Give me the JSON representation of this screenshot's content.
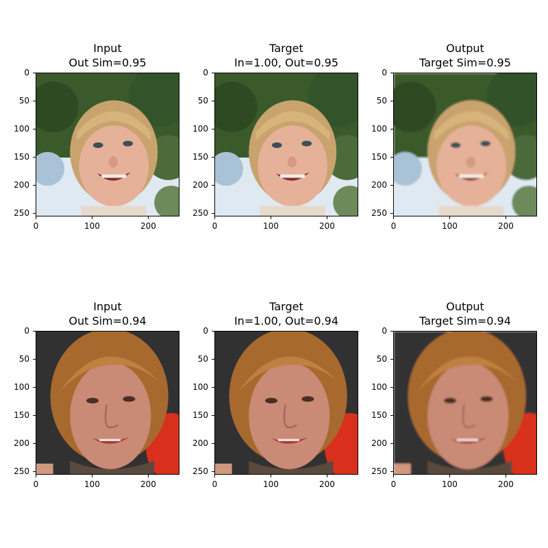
{
  "figure": {
    "rows": [
      {
        "panels": [
          {
            "title_line1": "Input",
            "title_line2": "Out Sim=0.95",
            "image": "child-face-photo"
          },
          {
            "title_line1": "Target",
            "title_line2": "In=1.00, Out=0.95",
            "image": "child-face-photo"
          },
          {
            "title_line1": "Output",
            "title_line2": "Target Sim=0.95",
            "image": "child-face-photo-blurred"
          }
        ]
      },
      {
        "panels": [
          {
            "title_line1": "Input",
            "title_line2": "Out Sim=0.94",
            "image": "woman-face-photo"
          },
          {
            "title_line1": "Target",
            "title_line2": "In=1.00, Out=0.94",
            "image": "woman-face-photo"
          },
          {
            "title_line1": "Output",
            "title_line2": "Target Sim=0.94",
            "image": "woman-face-photo-blurred"
          }
        ]
      }
    ],
    "axes": {
      "y_ticks": [
        "0",
        "50",
        "100",
        "150",
        "200",
        "250"
      ],
      "x_ticks": [
        "0",
        "100",
        "200"
      ]
    },
    "colors": {
      "sky": "#dfe9f2",
      "foliage": "#3b5a2c",
      "child_skin": "#e6b199",
      "child_hair": "#c9a36e",
      "woman_bg": "#2c2c2c",
      "woman_skin": "#c98a76",
      "woman_hair": "#a8692e",
      "red_object": "#d8301d"
    }
  }
}
